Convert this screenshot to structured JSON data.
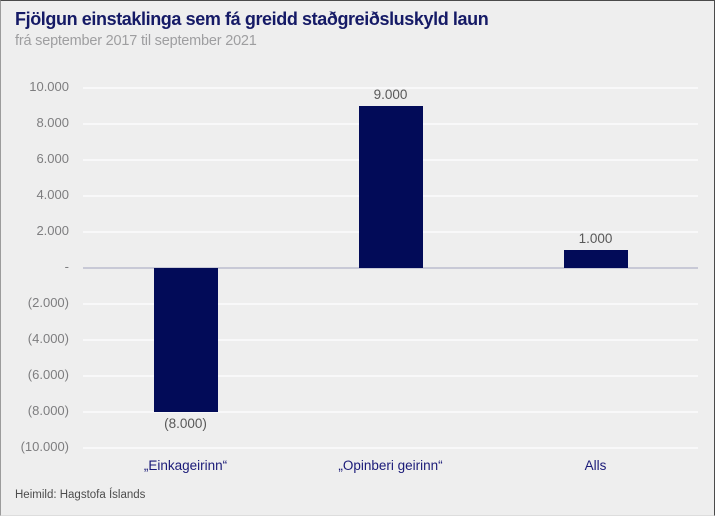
{
  "header": {
    "title": "Fjölgun einstaklinga sem fá greidd staðgreiðsluskyld laun",
    "subtitle": "frá september 2017 til september 2021"
  },
  "footer": {
    "source": "Heimild: Hagstofa Íslands"
  },
  "colors": {
    "background": "#eeeeee",
    "bar": "#020b58",
    "title": "#151a66",
    "subtitle": "#9e9ea0",
    "gridline": "#f8f8f9",
    "zero_line": "#c8c9d6",
    "y_tick_label": "#7d7d7f",
    "value_label": "#595959",
    "category_label": "#1a1a78",
    "source_text": "#4d4d4d"
  },
  "chart_data": {
    "type": "bar",
    "title": "Fjölgun einstaklinga sem fá greidd staðgreiðsluskyld laun",
    "subtitle": "frá september 2017 til september 2021",
    "categories": [
      "„Einkageirinn“",
      "„Opinberi geirinn“",
      "Alls"
    ],
    "values": [
      -8000,
      9000,
      1000
    ],
    "value_labels": [
      "(8.000)",
      "9.000",
      "1.000"
    ],
    "ylim": [
      -10000,
      10000
    ],
    "grid": true,
    "legend": false,
    "yticks": [
      {
        "value": 10000,
        "label": "10.000"
      },
      {
        "value": 8000,
        "label": "8.000"
      },
      {
        "value": 6000,
        "label": "6.000"
      },
      {
        "value": 4000,
        "label": "4.000"
      },
      {
        "value": 2000,
        "label": "2.000"
      },
      {
        "value": 0,
        "label": "-"
      },
      {
        "value": -2000,
        "label": "(2.000)"
      },
      {
        "value": -4000,
        "label": "(4.000)"
      },
      {
        "value": -6000,
        "label": "(6.000)"
      },
      {
        "value": -8000,
        "label": "(8.000)"
      },
      {
        "value": -10000,
        "label": "(10.000)"
      }
    ]
  }
}
